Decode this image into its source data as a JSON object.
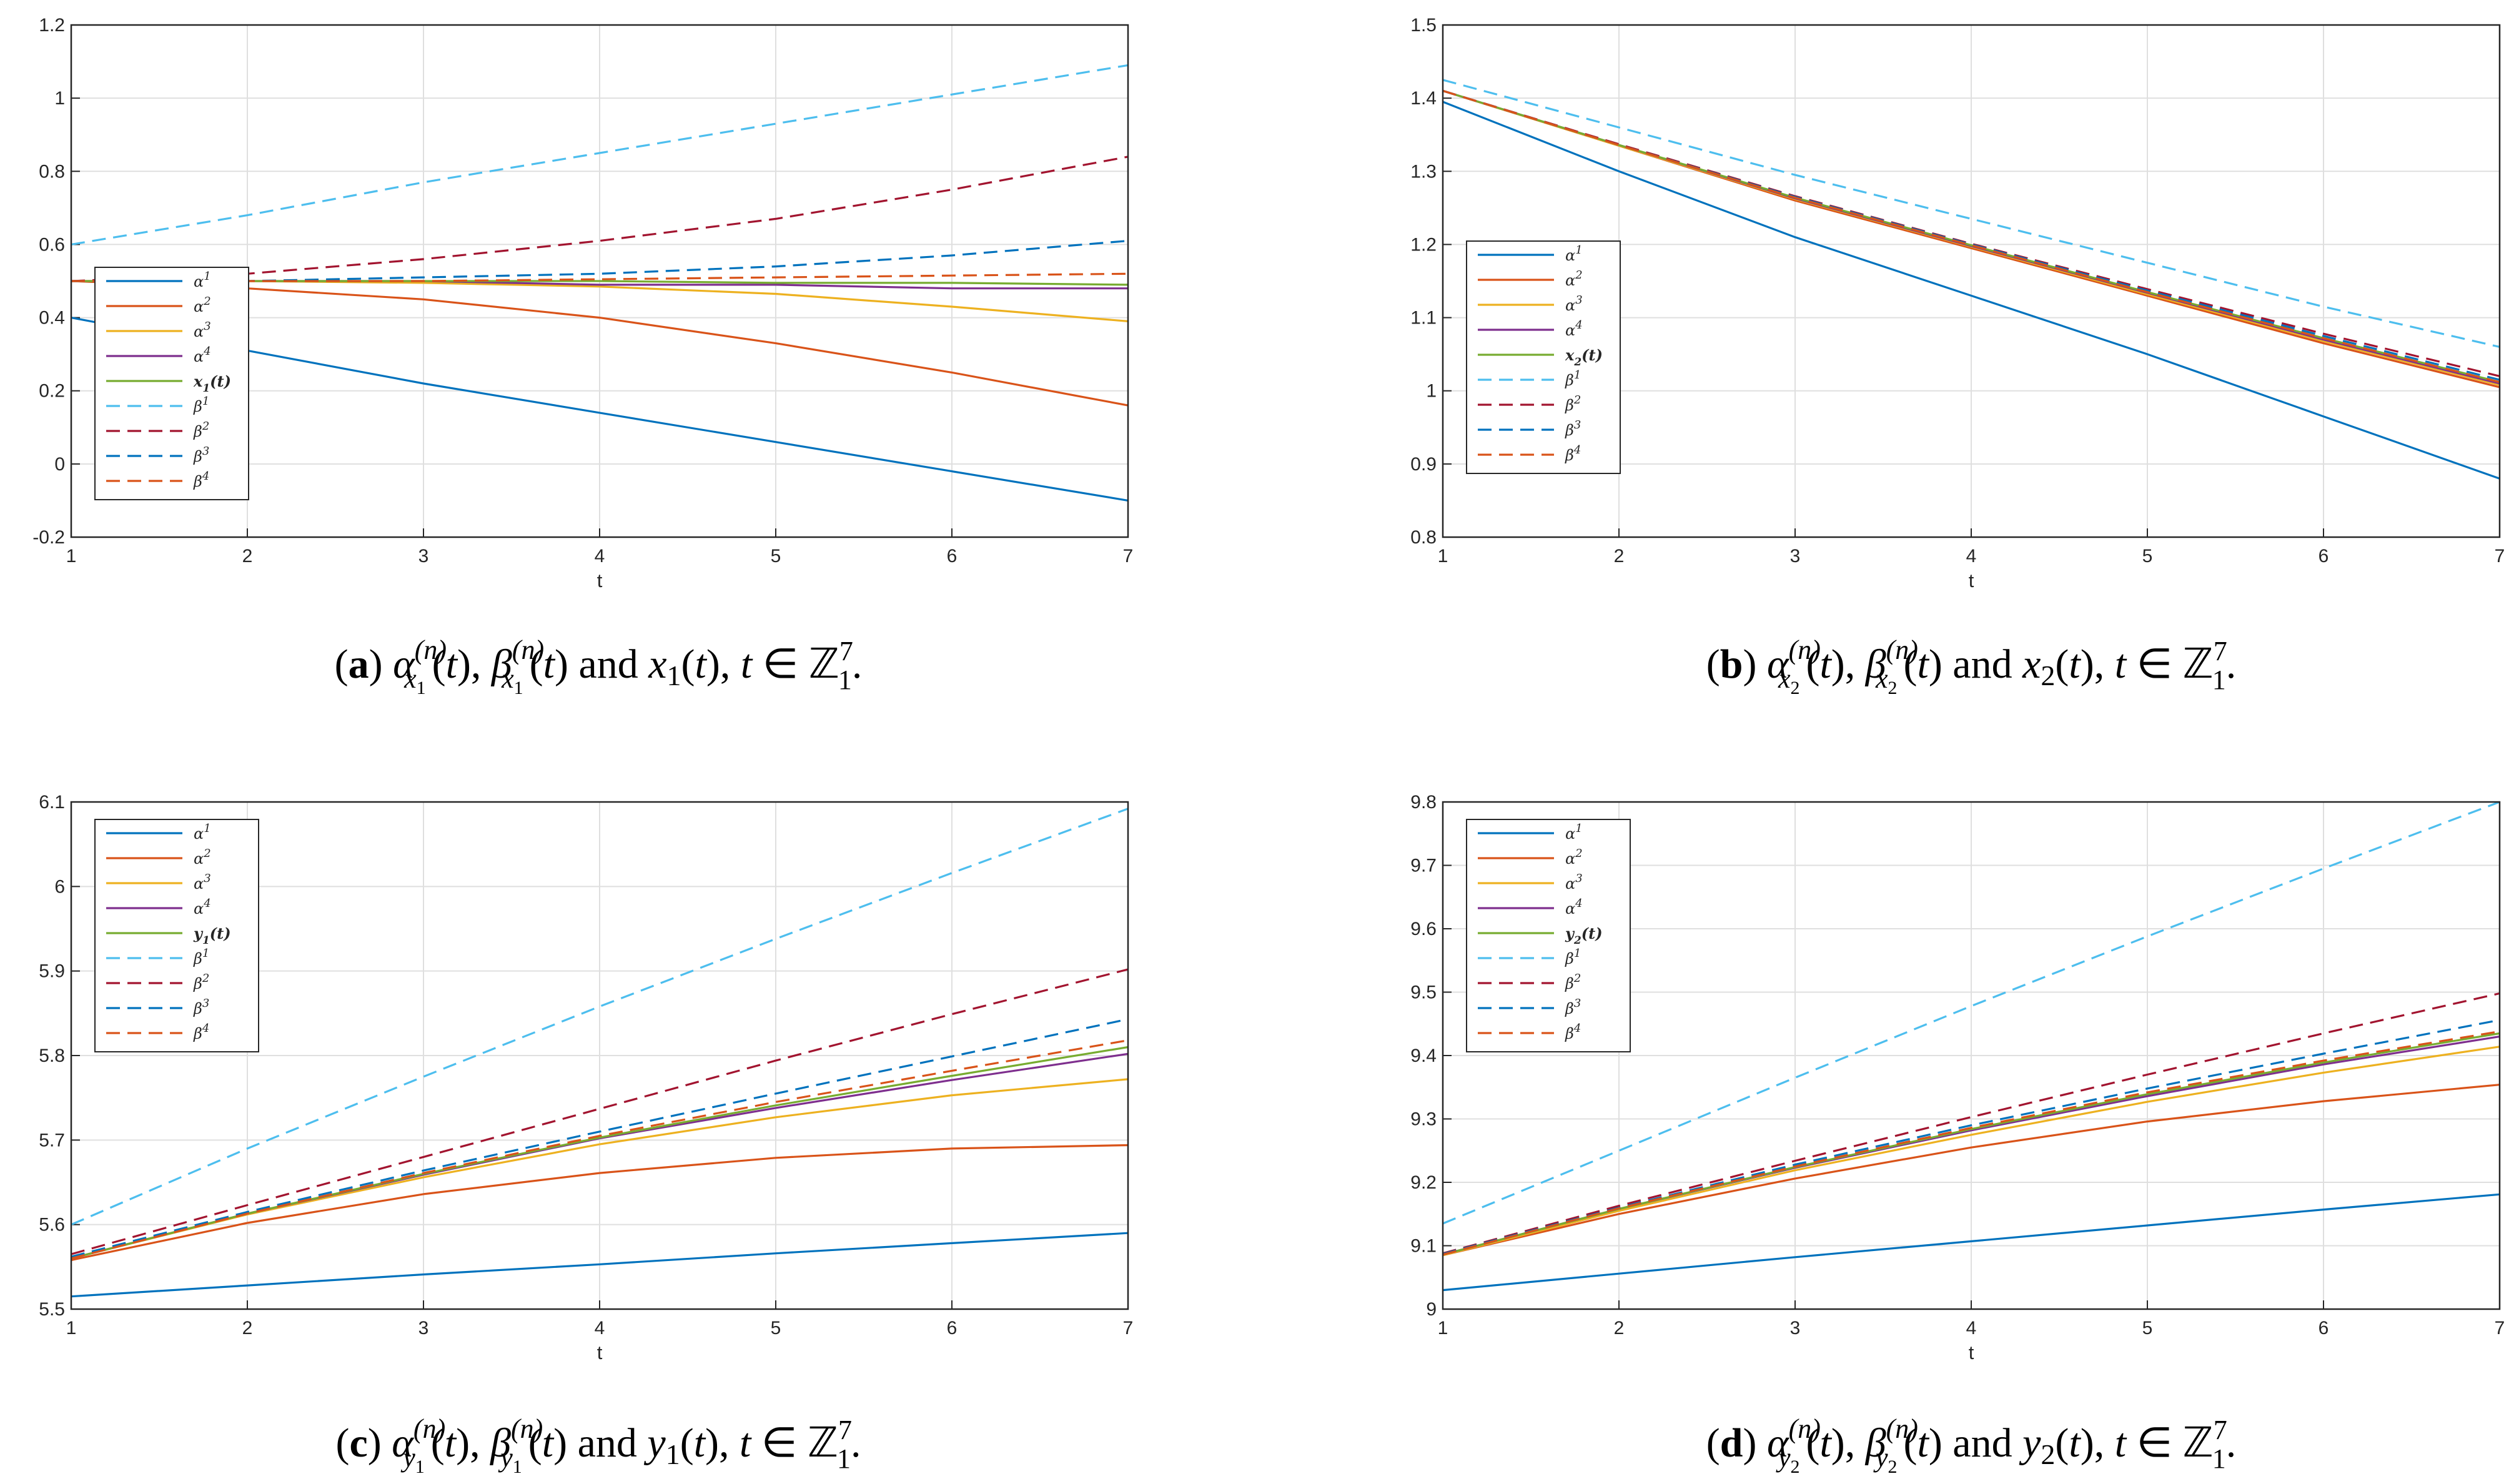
{
  "chart_data": [
    {
      "type": "line",
      "panel": "a",
      "caption": {
        "label": "(a)",
        "text": "αx₁(n)(t), βx₁(n)(t) and x₁(t), t ∈ ℤ₁⁷."
      },
      "xlabel": "t",
      "xlim": [
        1,
        7
      ],
      "ylim": [
        -0.2,
        1.2
      ],
      "xticks": [
        "1",
        "2",
        "3",
        "4",
        "5",
        "6",
        "7"
      ],
      "yticks": [
        "-0.2",
        "0",
        "0.2",
        "0.4",
        "0.6",
        "0.8",
        "1",
        "1.2"
      ],
      "grid": true,
      "legend_position": "left-middle",
      "x": [
        1,
        2,
        3,
        4,
        5,
        6,
        7
      ],
      "series": [
        {
          "name": "α1",
          "style": "solid",
          "color": "#0072BD",
          "values": [
            0.4,
            0.31,
            0.22,
            0.14,
            0.06,
            -0.02,
            -0.1
          ]
        },
        {
          "name": "α2",
          "style": "solid",
          "color": "#D95319",
          "values": [
            0.5,
            0.48,
            0.45,
            0.4,
            0.33,
            0.25,
            0.16
          ]
        },
        {
          "name": "α3",
          "style": "solid",
          "color": "#EDB120",
          "values": [
            0.5,
            0.5,
            0.495,
            0.485,
            0.465,
            0.43,
            0.39
          ]
        },
        {
          "name": "α4",
          "style": "solid",
          "color": "#7E2F8E",
          "values": [
            0.5,
            0.5,
            0.5,
            0.49,
            0.49,
            0.48,
            0.48
          ]
        },
        {
          "name": "x1(t)",
          "style": "solid",
          "color": "#77AC30",
          "values": [
            0.5,
            0.5,
            0.5,
            0.5,
            0.495,
            0.495,
            0.49
          ]
        },
        {
          "name": "β1",
          "style": "dashed",
          "color": "#4DBEEE",
          "values": [
            0.6,
            0.68,
            0.77,
            0.85,
            0.93,
            1.01,
            1.09
          ]
        },
        {
          "name": "β2",
          "style": "dashed",
          "color": "#A2142F",
          "values": [
            0.5,
            0.52,
            0.56,
            0.61,
            0.67,
            0.75,
            0.84
          ]
        },
        {
          "name": "β3",
          "style": "dashed",
          "color": "#0072BD",
          "values": [
            0.5,
            0.5,
            0.51,
            0.52,
            0.54,
            0.57,
            0.61
          ]
        },
        {
          "name": "β4",
          "style": "dashed",
          "color": "#D95319",
          "values": [
            0.5,
            0.5,
            0.5,
            0.505,
            0.51,
            0.515,
            0.52
          ]
        }
      ]
    },
    {
      "type": "line",
      "panel": "b",
      "caption": {
        "label": "(b)",
        "text": "αx₂(n)(t), βx₂(n)(t) and x₂(t), t ∈ ℤ₁⁷."
      },
      "xlabel": "t",
      "xlim": [
        1,
        7
      ],
      "ylim": [
        0.8,
        1.5
      ],
      "xticks": [
        "1",
        "2",
        "3",
        "4",
        "5",
        "6",
        "7"
      ],
      "yticks": [
        "0.8",
        "0.9",
        "1",
        "1.1",
        "1.2",
        "1.3",
        "1.4",
        "1.5"
      ],
      "grid": true,
      "legend_position": "left-middle",
      "x": [
        1,
        2,
        3,
        4,
        5,
        6,
        7
      ],
      "series": [
        {
          "name": "α1",
          "style": "solid",
          "color": "#0072BD",
          "values": [
            1.395,
            1.3,
            1.21,
            1.13,
            1.05,
            0.965,
            0.88
          ]
        },
        {
          "name": "α2",
          "style": "solid",
          "color": "#D95319",
          "values": [
            1.41,
            1.335,
            1.26,
            1.195,
            1.13,
            1.065,
            1.005
          ]
        },
        {
          "name": "α3",
          "style": "solid",
          "color": "#EDB120",
          "values": [
            1.41,
            1.335,
            1.262,
            1.197,
            1.132,
            1.068,
            1.008
          ]
        },
        {
          "name": "α4",
          "style": "solid",
          "color": "#7E2F8E",
          "values": [
            1.41,
            1.336,
            1.263,
            1.198,
            1.134,
            1.07,
            1.01
          ]
        },
        {
          "name": "x2(t)",
          "style": "solid",
          "color": "#77AC30",
          "values": [
            1.41,
            1.336,
            1.264,
            1.199,
            1.135,
            1.072,
            1.012
          ]
        },
        {
          "name": "β1",
          "style": "dashed",
          "color": "#4DBEEE",
          "values": [
            1.425,
            1.36,
            1.295,
            1.235,
            1.175,
            1.115,
            1.06
          ]
        },
        {
          "name": "β2",
          "style": "dashed",
          "color": "#A2142F",
          "values": [
            1.41,
            1.337,
            1.266,
            1.201,
            1.139,
            1.078,
            1.02
          ]
        },
        {
          "name": "β3",
          "style": "dashed",
          "color": "#0072BD",
          "values": [
            1.41,
            1.336,
            1.265,
            1.2,
            1.137,
            1.075,
            1.015
          ]
        },
        {
          "name": "β4",
          "style": "dashed",
          "color": "#D95319",
          "values": [
            1.41,
            1.336,
            1.264,
            1.199,
            1.135,
            1.072,
            1.012
          ]
        }
      ]
    },
    {
      "type": "line",
      "panel": "c",
      "caption": {
        "label": "(c)",
        "text": "αy₁(n)(t), βy₁(n)(t) and y₁(t), t ∈ ℤ₁⁷."
      },
      "xlabel": "t",
      "xlim": [
        1,
        7
      ],
      "ylim": [
        5.5,
        6.1
      ],
      "xticks": [
        "1",
        "2",
        "3",
        "4",
        "5",
        "6",
        "7"
      ],
      "yticks": [
        "5.5",
        "5.6",
        "5.7",
        "5.8",
        "5.9",
        "6",
        "6.1"
      ],
      "grid": true,
      "legend_position": "top-left",
      "x": [
        1,
        2,
        3,
        4,
        5,
        6,
        7
      ],
      "series": [
        {
          "name": "α1",
          "style": "solid",
          "color": "#0072BD",
          "values": [
            5.515,
            5.528,
            5.541,
            5.553,
            5.566,
            5.578,
            5.59
          ]
        },
        {
          "name": "α2",
          "style": "solid",
          "color": "#D95319",
          "values": [
            5.558,
            5.602,
            5.636,
            5.661,
            5.679,
            5.69,
            5.694
          ]
        },
        {
          "name": "α3",
          "style": "solid",
          "color": "#EDB120",
          "values": [
            5.56,
            5.612,
            5.656,
            5.695,
            5.727,
            5.753,
            5.772
          ]
        },
        {
          "name": "α4",
          "style": "solid",
          "color": "#7E2F8E",
          "values": [
            5.56,
            5.613,
            5.659,
            5.702,
            5.738,
            5.771,
            5.802
          ]
        },
        {
          "name": "y1(t)",
          "style": "solid",
          "color": "#77AC30",
          "values": [
            5.56,
            5.613,
            5.66,
            5.703,
            5.741,
            5.776,
            5.81
          ]
        },
        {
          "name": "β1",
          "style": "dashed",
          "color": "#4DBEEE",
          "values": [
            5.6,
            5.69,
            5.775,
            5.858,
            5.938,
            6.016,
            6.092
          ]
        },
        {
          "name": "β2",
          "style": "dashed",
          "color": "#A2142F",
          "values": [
            5.565,
            5.623,
            5.68,
            5.737,
            5.794,
            5.849,
            5.902
          ]
        },
        {
          "name": "β3",
          "style": "dashed",
          "color": "#0072BD",
          "values": [
            5.562,
            5.615,
            5.664,
            5.71,
            5.755,
            5.799,
            5.843
          ]
        },
        {
          "name": "β4",
          "style": "dashed",
          "color": "#D95319",
          "values": [
            5.56,
            5.613,
            5.661,
            5.705,
            5.745,
            5.782,
            5.818
          ]
        }
      ]
    },
    {
      "type": "line",
      "panel": "d",
      "caption": {
        "label": "(d)",
        "text": "αy₂(n)(t), βy₂(n)(t) and y₂(t), t ∈ ℤ₁⁷."
      },
      "xlabel": "t",
      "xlim": [
        1,
        7
      ],
      "ylim": [
        9.0,
        9.8
      ],
      "xticks": [
        "1",
        "2",
        "3",
        "4",
        "5",
        "6",
        "7"
      ],
      "yticks": [
        "9",
        "9.1",
        "9.2",
        "9.3",
        "9.4",
        "9.5",
        "9.6",
        "9.7",
        "9.8"
      ],
      "grid": true,
      "legend_position": "top-left",
      "x": [
        1,
        2,
        3,
        4,
        5,
        6,
        7
      ],
      "series": [
        {
          "name": "α1",
          "style": "solid",
          "color": "#0072BD",
          "values": [
            9.03,
            9.056,
            9.082,
            9.107,
            9.132,
            9.157,
            9.181
          ]
        },
        {
          "name": "α2",
          "style": "solid",
          "color": "#D95319",
          "values": [
            9.085,
            9.15,
            9.206,
            9.255,
            9.296,
            9.328,
            9.354
          ]
        },
        {
          "name": "α3",
          "style": "solid",
          "color": "#EDB120",
          "values": [
            9.085,
            9.155,
            9.219,
            9.275,
            9.327,
            9.373,
            9.414
          ]
        },
        {
          "name": "α4",
          "style": "solid",
          "color": "#7E2F8E",
          "values": [
            9.086,
            9.158,
            9.223,
            9.282,
            9.336,
            9.386,
            9.43
          ]
        },
        {
          "name": "y2(t)",
          "style": "solid",
          "color": "#77AC30",
          "values": [
            9.086,
            9.158,
            9.224,
            9.284,
            9.339,
            9.389,
            9.435
          ]
        },
        {
          "name": "β1",
          "style": "dashed",
          "color": "#4DBEEE",
          "values": [
            9.135,
            9.25,
            9.365,
            9.478,
            9.588,
            9.695,
            9.8
          ]
        },
        {
          "name": "β2",
          "style": "dashed",
          "color": "#A2142F",
          "values": [
            9.088,
            9.163,
            9.234,
            9.303,
            9.37,
            9.435,
            9.498
          ]
        },
        {
          "name": "β3",
          "style": "dashed",
          "color": "#0072BD",
          "values": [
            9.087,
            9.16,
            9.228,
            9.29,
            9.348,
            9.403,
            9.456
          ]
        },
        {
          "name": "β4",
          "style": "dashed",
          "color": "#D95319",
          "values": [
            9.086,
            9.159,
            9.225,
            9.286,
            9.342,
            9.392,
            9.438
          ]
        }
      ]
    }
  ]
}
